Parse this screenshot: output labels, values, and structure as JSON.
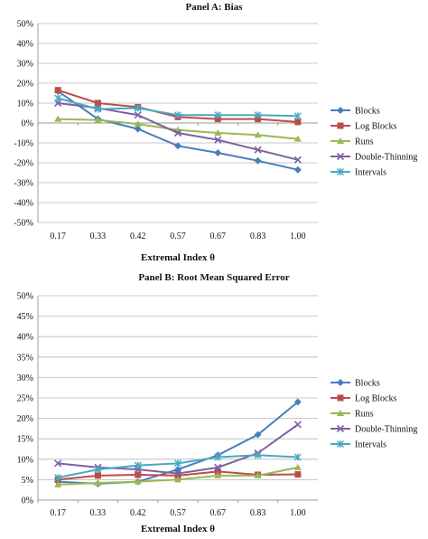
{
  "chart_data": [
    {
      "type": "line",
      "title": "Panel A: Bias",
      "xlabel": "Extremal Index θ",
      "ylabel": "",
      "categories": [
        "0.17",
        "0.33",
        "0.42",
        "0.57",
        "0.67",
        "0.83",
        "1.00"
      ],
      "y_ticks": [
        "50%",
        "40%",
        "30%",
        "20%",
        "10%",
        "0%",
        "-10%",
        "-20%",
        "-30%",
        "-40%",
        "-50%"
      ],
      "ylim": [
        -0.5,
        0.5
      ],
      "grid": "horizontal",
      "legend": "right",
      "series": [
        {
          "name": "Blocks",
          "color": "#4a7ebb",
          "marker": "diamond",
          "values": [
            0.16,
            0.02,
            -0.03,
            -0.115,
            -0.15,
            -0.19,
            -0.235
          ]
        },
        {
          "name": "Log Blocks",
          "color": "#be4b48",
          "marker": "square",
          "values": [
            0.165,
            0.1,
            0.08,
            0.03,
            0.02,
            0.02,
            0.005
          ]
        },
        {
          "name": "Runs",
          "color": "#98b954",
          "marker": "triangle",
          "values": [
            0.02,
            0.015,
            -0.005,
            -0.035,
            -0.05,
            -0.06,
            -0.08
          ]
        },
        {
          "name": "Double-Thinning",
          "color": "#7d60a0",
          "marker": "x",
          "values": [
            0.1,
            0.075,
            0.04,
            -0.05,
            -0.085,
            -0.135,
            -0.185
          ]
        },
        {
          "name": "Intervals",
          "color": "#46aac5",
          "marker": "star",
          "values": [
            0.125,
            0.07,
            0.075,
            0.04,
            0.04,
            0.04,
            0.035
          ]
        }
      ]
    },
    {
      "type": "line",
      "title": "Panel B: Root Mean Squared Error",
      "xlabel": "Extremal Index θ",
      "ylabel": "",
      "categories": [
        "0.17",
        "0.33",
        "0.42",
        "0.57",
        "0.67",
        "0.83",
        "1.00"
      ],
      "y_ticks": [
        "50%",
        "45%",
        "40%",
        "35%",
        "30%",
        "25%",
        "20%",
        "15%",
        "10%",
        "5%",
        "0%"
      ],
      "ylim": [
        0,
        0.5
      ],
      "grid": "horizontal",
      "legend": "right",
      "series": [
        {
          "name": "Blocks",
          "color": "#4a7ebb",
          "marker": "diamond",
          "values": [
            0.045,
            0.04,
            0.045,
            0.075,
            0.11,
            0.16,
            0.24
          ]
        },
        {
          "name": "Log Blocks",
          "color": "#be4b48",
          "marker": "square",
          "values": [
            0.05,
            0.06,
            0.062,
            0.06,
            0.07,
            0.062,
            0.063
          ]
        },
        {
          "name": "Runs",
          "color": "#98b954",
          "marker": "triangle",
          "values": [
            0.038,
            0.042,
            0.045,
            0.05,
            0.06,
            0.06,
            0.08
          ]
        },
        {
          "name": "Double-Thinning",
          "color": "#7d60a0",
          "marker": "x",
          "values": [
            0.09,
            0.08,
            0.075,
            0.065,
            0.08,
            0.115,
            0.185
          ]
        },
        {
          "name": "Intervals",
          "color": "#46aac5",
          "marker": "star",
          "values": [
            0.055,
            0.075,
            0.085,
            0.09,
            0.105,
            0.11,
            0.105
          ]
        }
      ]
    }
  ]
}
